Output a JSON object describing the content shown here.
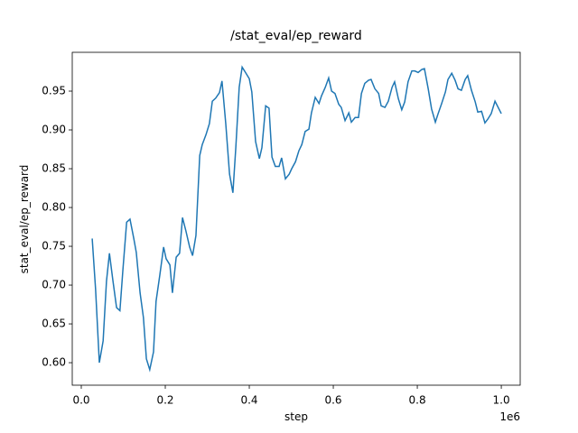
{
  "chart_data": {
    "type": "line",
    "title": "/stat_eval/ep_reward",
    "x_label": "step",
    "y_label": "stat_eval/ep_reward",
    "x_offset_label": "1e6",
    "x": [
      26000,
      34000,
      43000,
      52000,
      60000,
      67000,
      75000,
      84000,
      92000,
      99000,
      108000,
      116000,
      125000,
      131000,
      140000,
      148000,
      155000,
      163000,
      172000,
      178000,
      187000,
      196000,
      202000,
      211000,
      217000,
      226000,
      234000,
      241000,
      249000,
      258000,
      265000,
      273000,
      282000,
      288000,
      297000,
      305000,
      312000,
      320000,
      329000,
      335000,
      344000,
      353000,
      361000,
      368000,
      376000,
      383000,
      391000,
      400000,
      406000,
      415000,
      424000,
      430000,
      439000,
      447000,
      454000,
      462000,
      471000,
      477000,
      486000,
      495000,
      501000,
      510000,
      518000,
      525000,
      533000,
      542000,
      548000,
      557000,
      566000,
      572000,
      581000,
      589000,
      596000,
      604000,
      613000,
      619000,
      628000,
      637000,
      643000,
      652000,
      660000,
      667000,
      675000,
      684000,
      690000,
      699000,
      708000,
      714000,
      723000,
      731000,
      740000,
      746000,
      755000,
      763000,
      770000,
      778000,
      787000,
      794000,
      802000,
      811000,
      817000,
      826000,
      834000,
      843000,
      849000,
      858000,
      867000,
      873000,
      882000,
      890000,
      897000,
      905000,
      914000,
      920000,
      929000,
      938000,
      944000,
      953000,
      961000,
      968000,
      976000,
      985000,
      1000000
    ],
    "series": [
      {
        "color": "#1f77b4",
        "values": [
          0.76,
          0.695,
          0.6,
          0.628,
          0.705,
          0.741,
          0.707,
          0.671,
          0.667,
          0.719,
          0.781,
          0.785,
          0.76,
          0.742,
          0.69,
          0.658,
          0.605,
          0.591,
          0.614,
          0.679,
          0.713,
          0.749,
          0.734,
          0.726,
          0.69,
          0.736,
          0.741,
          0.787,
          0.77,
          0.749,
          0.738,
          0.764,
          0.867,
          0.881,
          0.894,
          0.908,
          0.937,
          0.941,
          0.948,
          0.963,
          0.908,
          0.843,
          0.819,
          0.878,
          0.955,
          0.981,
          0.974,
          0.966,
          0.949,
          0.885,
          0.863,
          0.877,
          0.931,
          0.928,
          0.865,
          0.853,
          0.853,
          0.864,
          0.837,
          0.843,
          0.85,
          0.859,
          0.873,
          0.881,
          0.898,
          0.901,
          0.922,
          0.942,
          0.934,
          0.944,
          0.955,
          0.967,
          0.95,
          0.947,
          0.933,
          0.929,
          0.912,
          0.922,
          0.91,
          0.916,
          0.916,
          0.947,
          0.96,
          0.964,
          0.965,
          0.953,
          0.947,
          0.931,
          0.929,
          0.937,
          0.955,
          0.962,
          0.94,
          0.926,
          0.936,
          0.962,
          0.976,
          0.976,
          0.974,
          0.978,
          0.979,
          0.953,
          0.927,
          0.91,
          0.92,
          0.934,
          0.949,
          0.965,
          0.973,
          0.964,
          0.953,
          0.951,
          0.965,
          0.97,
          0.951,
          0.936,
          0.923,
          0.924,
          0.909,
          0.914,
          0.921,
          0.937,
          0.921
        ]
      }
    ],
    "xlim": [
      -21500,
      1045000
    ],
    "ylim": [
      0.571,
      1.0
    ],
    "xticks": [
      {
        "value": 0,
        "label": "0.0"
      },
      {
        "value": 200000,
        "label": "0.2"
      },
      {
        "value": 400000,
        "label": "0.4"
      },
      {
        "value": 600000,
        "label": "0.6"
      },
      {
        "value": 800000,
        "label": "0.8"
      },
      {
        "value": 1000000,
        "label": "1.0"
      }
    ],
    "yticks": [
      {
        "value": 0.6,
        "label": "0.60"
      },
      {
        "value": 0.65,
        "label": "0.65"
      },
      {
        "value": 0.7,
        "label": "0.70"
      },
      {
        "value": 0.75,
        "label": "0.75"
      },
      {
        "value": 0.8,
        "label": "0.80"
      },
      {
        "value": 0.85,
        "label": "0.85"
      },
      {
        "value": 0.9,
        "label": "0.90"
      },
      {
        "value": 0.95,
        "label": "0.95"
      }
    ],
    "grid": false
  }
}
